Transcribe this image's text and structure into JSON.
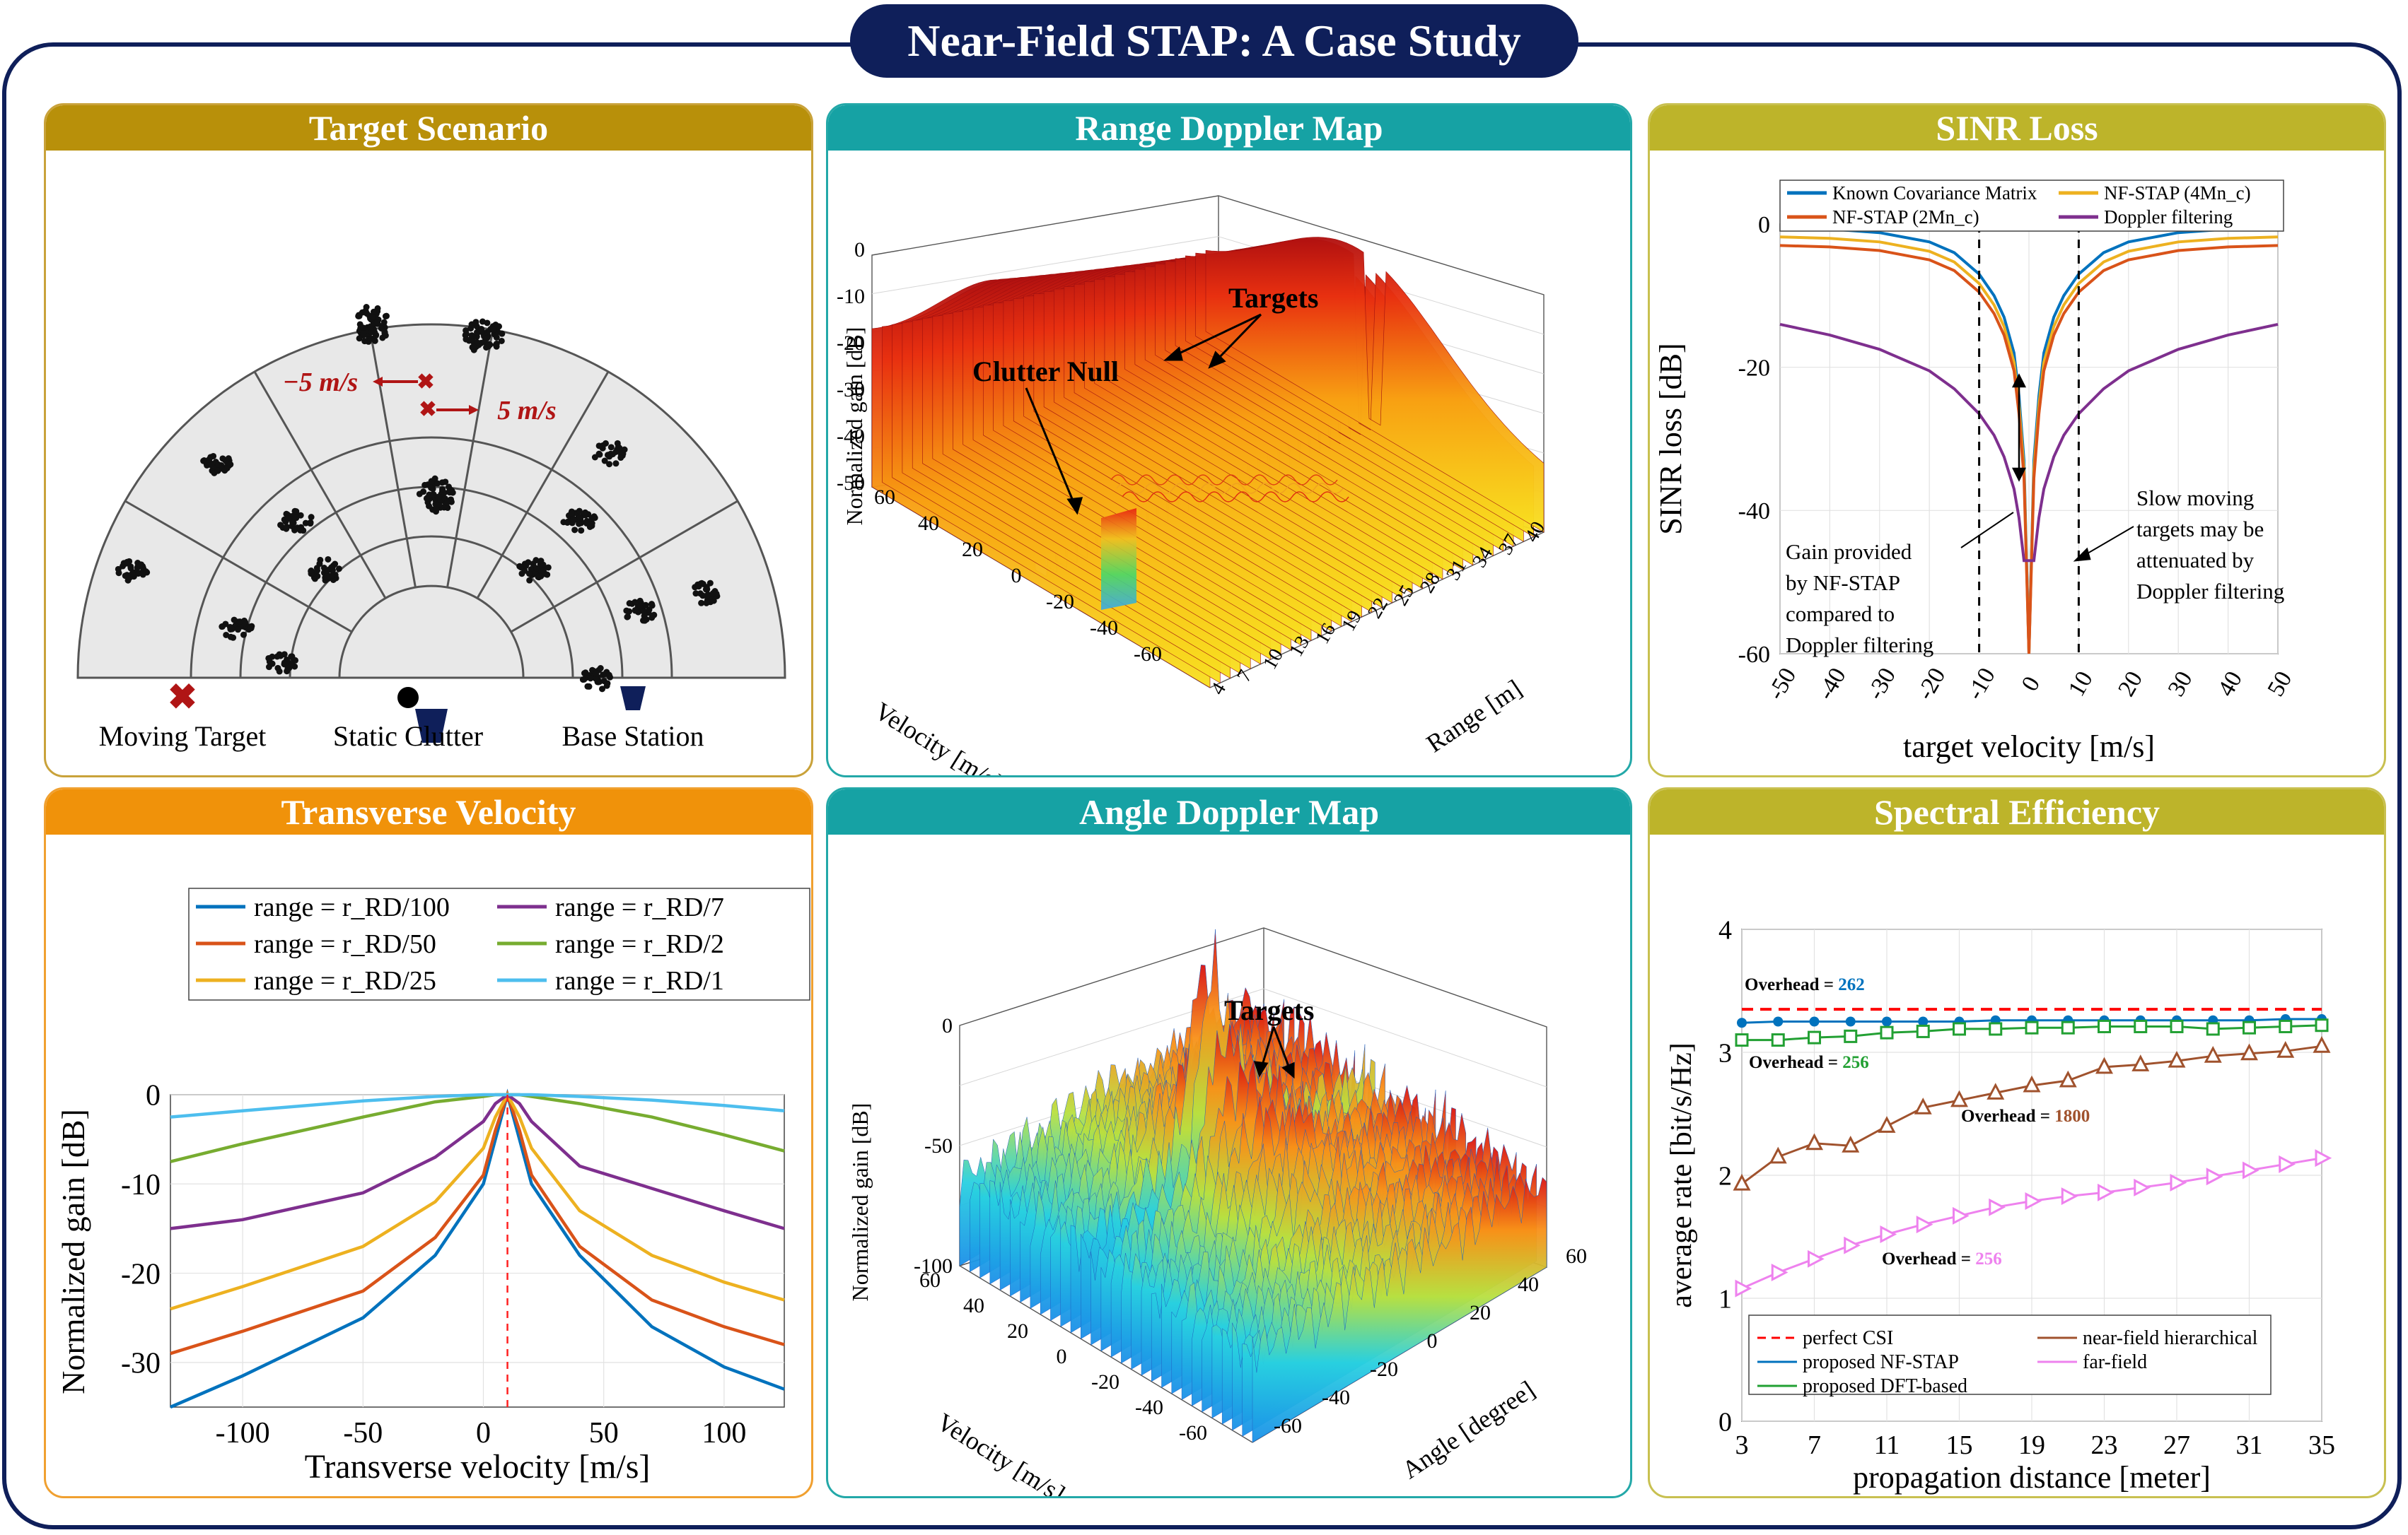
{
  "header": {
    "title": "Near-Field STAP: A Case Study"
  },
  "colors": {
    "navy": "#0f1f5a",
    "gold": "#b8900a",
    "teal": "#16a2a4",
    "olive": "#bdb42a",
    "orange": "#f0920a"
  },
  "panels": {
    "target_scenario": {
      "title": "Target Scenario",
      "velocity_left": "−5 m/s",
      "velocity_right": "5 m/s",
      "legend": {
        "moving_target": "Moving Target",
        "static_clutter": "Static Clutter",
        "base_station": "Base Station"
      }
    },
    "range_doppler": {
      "title": "Range Doppler Map",
      "annot_targets": "Targets",
      "annot_clutter_null": "Clutter Null",
      "zlabel": "Normalized gain [dB]",
      "xlabel": "Velocity [m/s]",
      "ylabel": "Range [m]",
      "z_ticks": [
        "0",
        "-10",
        "-20",
        "-30",
        "-40",
        "-50"
      ],
      "v_ticks": [
        "60",
        "40",
        "20",
        "0",
        "-20",
        "-40",
        "-60"
      ],
      "r_ticks": [
        "4",
        "7",
        "10",
        "13",
        "16",
        "19",
        "22",
        "25",
        "28",
        "31",
        "34",
        "37",
        "40"
      ]
    },
    "sinr_loss": {
      "title": "SINR Loss",
      "legend": [
        "Known Covariance Matrix",
        "NF-STAP (4Mn_c)",
        "NF-STAP (2Mn_c)",
        "Doppler filtering"
      ],
      "annot_gain": [
        "Gain provided",
        "by NF-STAP",
        "compared to",
        "Doppler filtering"
      ],
      "annot_slow": [
        "Slow moving",
        "targets may be",
        "attenuated by",
        "Doppler filtering"
      ]
    },
    "transverse_velocity": {
      "title": "Transverse Velocity",
      "legend": [
        "range = r_RD/100",
        "range = r_RD/7",
        "range = r_RD/50",
        "range = r_RD/2",
        "range = r_RD/25",
        "range = r_RD/1"
      ]
    },
    "angle_doppler": {
      "title": "Angle Doppler Map",
      "annot_targets": "Targets",
      "zlabel": "Normalized gain [dB]",
      "xlabel": "Velocity [m/s]",
      "ylabel": "Angle [degree]",
      "z_ticks": [
        "0",
        "-50",
        "-100"
      ],
      "v_ticks": [
        "60",
        "40",
        "20",
        "0",
        "-20",
        "-40",
        "-60"
      ],
      "a_ticks": [
        "-60",
        "-40",
        "-20",
        "0",
        "20",
        "40",
        "60"
      ]
    },
    "spectral_efficiency": {
      "title": "Spectral Efficiency",
      "overhead": [
        "Overhead = ",
        "262",
        "256",
        "1800",
        "256"
      ],
      "legend": [
        "perfect CSI",
        "near-field hierarchical",
        "proposed NF-STAP",
        "far-field",
        "proposed DFT-based"
      ]
    }
  },
  "chart_data": [
    {
      "type": "line",
      "title": "SINR Loss",
      "xlabel": "target velocity [m/s]",
      "ylabel": "SINR loss [dB]",
      "xlim": [
        -50,
        50
      ],
      "ylim": [
        -60,
        0
      ],
      "xticks": [
        -50,
        -40,
        -30,
        -20,
        -10,
        0,
        10,
        20,
        30,
        40,
        50
      ],
      "yticks": [
        0,
        -20,
        -40,
        -60
      ],
      "x": [
        -50,
        -40,
        -30,
        -20,
        -15,
        -10,
        -7,
        -5,
        -3,
        -2,
        -1,
        0,
        1,
        2,
        3,
        5,
        7,
        10,
        15,
        20,
        30,
        40,
        50
      ],
      "series": [
        {
          "name": "Known Covariance Matrix",
          "color": "#0072BD",
          "values": [
            -0.5,
            -0.7,
            -1.2,
            -2.5,
            -4,
            -7,
            -10,
            -13,
            -18,
            -24,
            -33,
            -60,
            -33,
            -24,
            -18,
            -13,
            -10,
            -7,
            -4,
            -2.5,
            -1.2,
            -0.7,
            -0.5
          ]
        },
        {
          "name": "NF-STAP (4Mn_c)",
          "color": "#EDB120",
          "values": [
            -1.8,
            -2,
            -2.5,
            -3.8,
            -5.3,
            -8.3,
            -11.3,
            -14.3,
            -19.3,
            -25.3,
            -34.3,
            -60,
            -34.3,
            -25.3,
            -19.3,
            -14.3,
            -11.3,
            -8.3,
            -5.3,
            -3.8,
            -2.5,
            -2,
            -1.8
          ]
        },
        {
          "name": "NF-STAP (2Mn_c)",
          "color": "#D95319",
          "values": [
            -3,
            -3.2,
            -3.7,
            -5,
            -6.5,
            -9.5,
            -12.5,
            -15.5,
            -20.5,
            -26.5,
            -35.5,
            -60,
            -35.5,
            -26.5,
            -20.5,
            -15.5,
            -12.5,
            -9.5,
            -6.5,
            -5,
            -3.7,
            -3.2,
            -3
          ]
        },
        {
          "name": "Doppler filtering",
          "color": "#7E2F8E",
          "values": [
            -14,
            -15.5,
            -17.5,
            -20.5,
            -23,
            -26.5,
            -29.5,
            -32.5,
            -37,
            -41,
            -47,
            -47,
            -47,
            -41,
            -37,
            -32.5,
            -29.5,
            -26.5,
            -23,
            -20.5,
            -17.5,
            -15.5,
            -14
          ]
        }
      ]
    },
    {
      "type": "line",
      "title": "Transverse Velocity",
      "xlabel": "Transverse velocity [m/s]",
      "ylabel": "Normalized gain [dB]",
      "xlim": [
        -130,
        125
      ],
      "ylim": [
        -35,
        0
      ],
      "xticks": [
        -100,
        -50,
        0,
        50,
        100
      ],
      "yticks": [
        0,
        -10,
        -20,
        -30
      ],
      "reference_line_x": 10,
      "x": [
        -130,
        -100,
        -50,
        -20,
        0,
        5,
        10,
        15,
        20,
        40,
        70,
        100,
        125
      ],
      "series": [
        {
          "name": "range = r_RD/100",
          "color": "#0072BD",
          "values": [
            -35,
            -31.5,
            -25,
            -18,
            -10,
            -5,
            0,
            -5,
            -10,
            -18,
            -26,
            -30.5,
            -33
          ]
        },
        {
          "name": "range = r_RD/50",
          "color": "#D95319",
          "values": [
            -29,
            -26.5,
            -22,
            -16,
            -9,
            -4,
            0,
            -4,
            -9,
            -17,
            -23,
            -26,
            -28
          ]
        },
        {
          "name": "range = r_RD/25",
          "color": "#EDB120",
          "values": [
            -24,
            -21.5,
            -17,
            -12,
            -6,
            -2.5,
            0,
            -2.5,
            -6,
            -13,
            -18,
            -21,
            -23
          ]
        },
        {
          "name": "range = r_RD/7",
          "color": "#7E2F8E",
          "values": [
            -15,
            -14,
            -11,
            -7,
            -3,
            -1,
            0,
            -1,
            -3,
            -8,
            -10.5,
            -13,
            -15
          ]
        },
        {
          "name": "range = r_RD/2",
          "color": "#77AC30",
          "values": [
            -7.5,
            -5.5,
            -2.5,
            -0.8,
            -0.2,
            0,
            0,
            0,
            -0.2,
            -1,
            -2.5,
            -4.5,
            -6.3
          ]
        },
        {
          "name": "range = r_RD/1",
          "color": "#4DBEEE",
          "values": [
            -2.5,
            -1.8,
            -0.7,
            -0.2,
            0,
            0,
            0,
            0,
            0,
            -0.2,
            -0.6,
            -1.2,
            -1.8
          ]
        }
      ]
    },
    {
      "type": "line",
      "title": "Spectral Efficiency",
      "xlabel": "propagation distance [meter]",
      "ylabel": "average rate [bit/s/Hz]",
      "xlim": [
        3,
        35
      ],
      "ylim": [
        0,
        4
      ],
      "xticks": [
        3,
        7,
        11,
        15,
        19,
        23,
        27,
        31,
        35
      ],
      "yticks": [
        0,
        1,
        2,
        3,
        4
      ],
      "x": [
        3,
        5,
        7,
        9,
        11,
        13,
        15,
        17,
        19,
        21,
        23,
        25,
        27,
        29,
        31,
        33,
        35
      ],
      "series": [
        {
          "name": "perfect CSI",
          "color": "#FF0000",
          "values": [
            3.35,
            3.35,
            3.35,
            3.35,
            3.35,
            3.35,
            3.35,
            3.35,
            3.35,
            3.35,
            3.35,
            3.35,
            3.35,
            3.35,
            3.35,
            3.35,
            3.35
          ]
        },
        {
          "name": "proposed NF-STAP",
          "color": "#0072BD",
          "values": [
            3.24,
            3.25,
            3.25,
            3.25,
            3.25,
            3.25,
            3.25,
            3.26,
            3.26,
            3.26,
            3.26,
            3.26,
            3.26,
            3.26,
            3.26,
            3.27,
            3.27
          ]
        },
        {
          "name": "proposed DFT-based",
          "color": "#22A033",
          "values": [
            3.1,
            3.1,
            3.12,
            3.13,
            3.16,
            3.17,
            3.19,
            3.19,
            3.2,
            3.2,
            3.21,
            3.21,
            3.21,
            3.19,
            3.2,
            3.21,
            3.22
          ]
        },
        {
          "name": "near-field hierarchical",
          "color": "#A0522D",
          "values": [
            1.93,
            2.15,
            2.26,
            2.24,
            2.4,
            2.55,
            2.61,
            2.67,
            2.73,
            2.77,
            2.88,
            2.9,
            2.93,
            2.97,
            2.99,
            3.01,
            3.05
          ]
        },
        {
          "name": "far-field",
          "color": "#EE82EE",
          "values": [
            1.08,
            1.21,
            1.32,
            1.43,
            1.52,
            1.6,
            1.67,
            1.74,
            1.79,
            1.83,
            1.86,
            1.9,
            1.94,
            1.99,
            2.04,
            2.09,
            2.14
          ]
        }
      ]
    }
  ]
}
